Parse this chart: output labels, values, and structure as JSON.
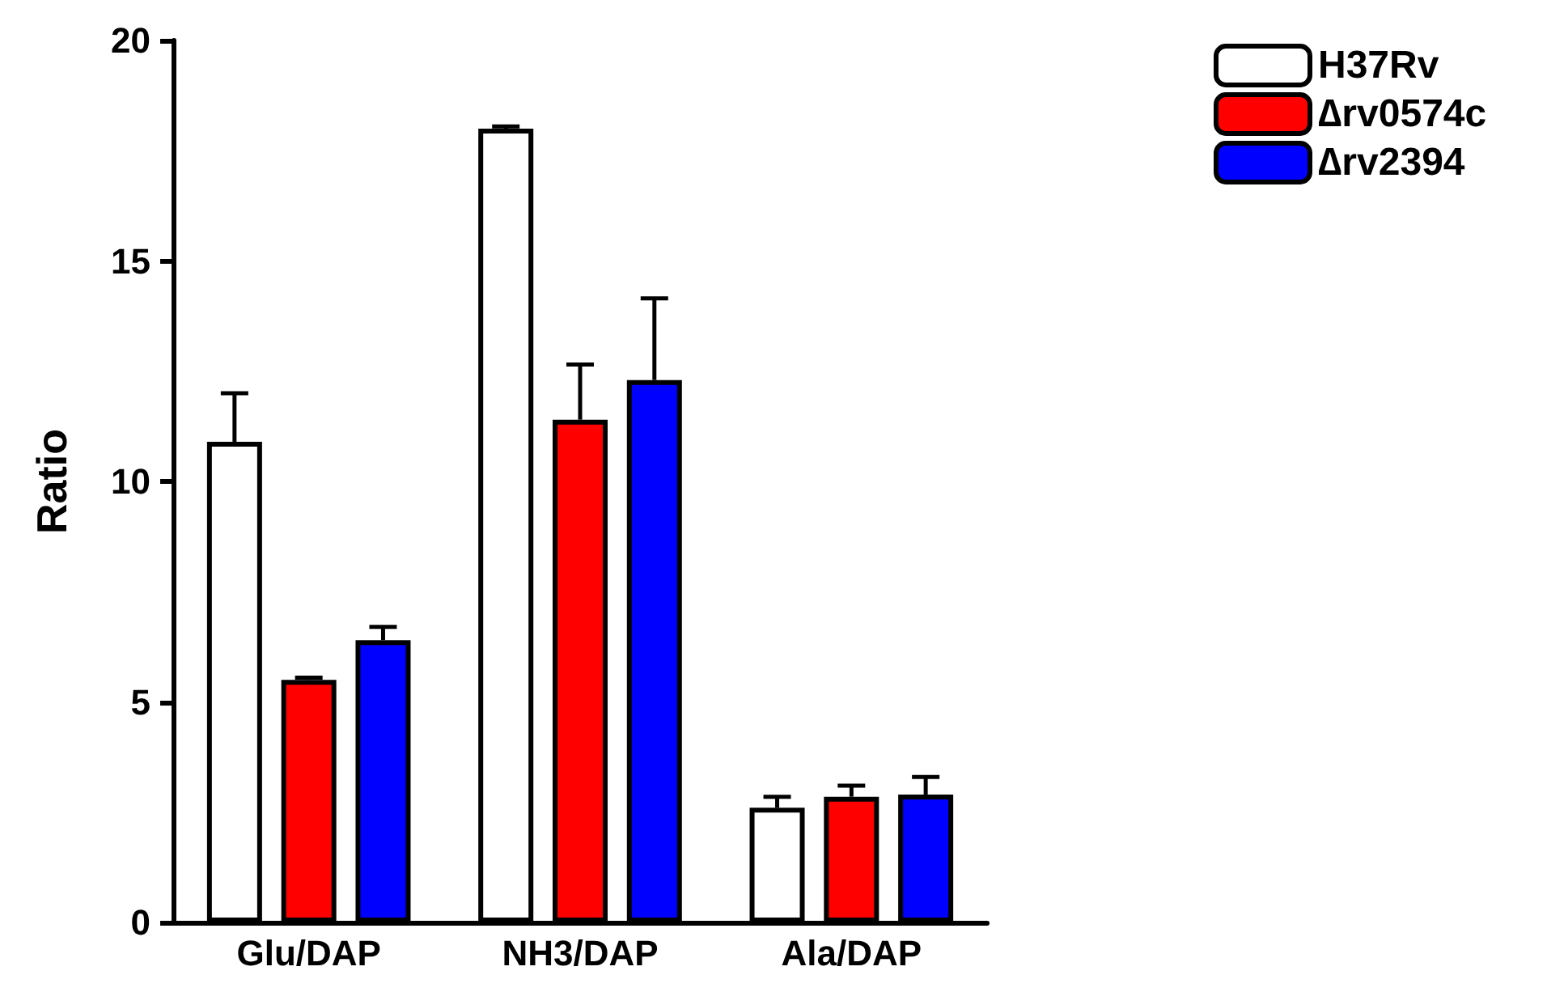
{
  "chart_data": {
    "type": "bar",
    "ylabel": "Ratio",
    "categories": [
      "Glu/DAP",
      "NH3/DAP",
      "Ala/DAP"
    ],
    "series": [
      {
        "name": "H37Rv",
        "color": "#ffffff",
        "values": [
          10.9,
          18.0,
          2.6
        ],
        "errors": [
          [
            10.9,
            12.0
          ],
          [
            18.0,
            18.05
          ],
          [
            2.6,
            2.85
          ]
        ]
      },
      {
        "name": "∆rv0574c",
        "color": "#ff0000",
        "values": [
          5.5,
          11.4,
          2.85
        ],
        "errors": [
          [
            5.5,
            5.55
          ],
          [
            11.4,
            12.65
          ],
          [
            2.85,
            3.1
          ]
        ]
      },
      {
        "name": "∆rv2394",
        "color": "#0000ff",
        "values": [
          6.4,
          12.3,
          2.9
        ],
        "errors": [
          [
            6.4,
            6.7
          ],
          [
            12.3,
            14.15
          ],
          [
            2.9,
            3.3
          ]
        ]
      }
    ],
    "ylim": [
      0,
      20
    ],
    "yticks": [
      0,
      5,
      10,
      15,
      20
    ],
    "grid": false,
    "legend": "top right"
  }
}
